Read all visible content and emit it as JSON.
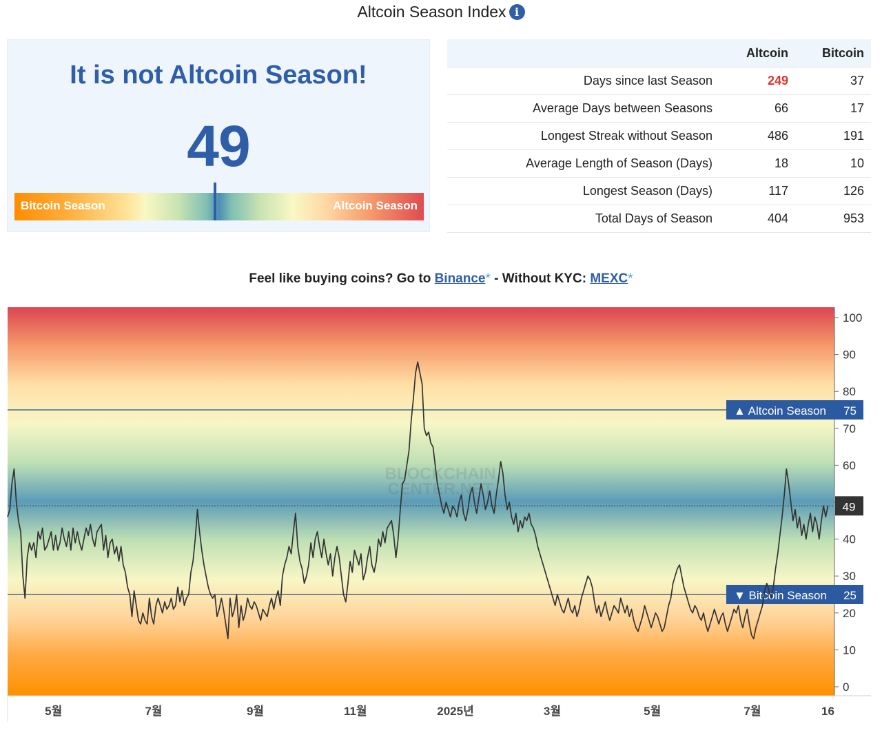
{
  "header": {
    "title": "Altcoin Season Index",
    "info_icon": "info-icon",
    "info_glyph": "i"
  },
  "season_panel": {
    "headline": "It is not Altcoin Season!",
    "value": "49",
    "gauge": {
      "left_label": "Bitcoin Season",
      "right_label": "Altcoin Season",
      "marker_value": 49
    }
  },
  "stats_table": {
    "columns": [
      "",
      "Altcoin",
      "Bitcoin"
    ],
    "rows": [
      {
        "label": "Days since last Season",
        "altcoin": "249",
        "bitcoin": "37"
      },
      {
        "label": "Average Days between Seasons",
        "altcoin": "66",
        "bitcoin": "17"
      },
      {
        "label": "Longest Streak without Season",
        "altcoin": "486",
        "bitcoin": "191"
      },
      {
        "label": "Average Length of Season (Days)",
        "altcoin": "18",
        "bitcoin": "10"
      },
      {
        "label": "Longest Season (Days)",
        "altcoin": "117",
        "bitcoin": "126"
      },
      {
        "label": "Total Days of Season",
        "altcoin": "404",
        "bitcoin": "953"
      }
    ],
    "highlight_color": "#dd3333"
  },
  "promo": {
    "prefix": "Feel like buying coins? Go to ",
    "link1": "Binance",
    "star1": "*",
    "middle": " - Without KYC: ",
    "link2": "MEXC",
    "star2": "*"
  },
  "chart_data": {
    "type": "line",
    "ylim": [
      0,
      100
    ],
    "y_ticks": [
      0,
      10,
      20,
      30,
      40,
      50,
      60,
      70,
      80,
      90,
      100
    ],
    "y_tick_labels": [
      "0",
      "10",
      "20",
      "30",
      "40",
      "",
      "60",
      "70",
      "80",
      "90",
      "100"
    ],
    "x_ticks": [
      {
        "label": "5월",
        "date": "2024-05-01"
      },
      {
        "label": "7월",
        "date": "2024-07-01"
      },
      {
        "label": "9월",
        "date": "2024-09-01"
      },
      {
        "label": "11월",
        "date": "2024-11-01"
      },
      {
        "label": "2025년",
        "date": "2025-01-01"
      },
      {
        "label": "3월",
        "date": "2025-03-01"
      },
      {
        "label": "5월",
        "date": "2025-05-01"
      },
      {
        "label": "7월",
        "date": "2025-07-01"
      },
      {
        "label": "16",
        "date": "2025-08-16"
      }
    ],
    "xlim": [
      "2024-04-03",
      "2025-08-20"
    ],
    "grid": false,
    "background_gradient": [
      "#dc4550",
      "#f59a6b",
      "#ffe0a6",
      "#f7f6c6",
      "#bfe0b4",
      "#5c9cb8",
      "#bfe0b4",
      "#f7f6c6",
      "#ffd49a",
      "#ffa840",
      "#ff9000"
    ],
    "line_color": "#333333",
    "threshold_lines": [
      {
        "label": "▲ Altcoin Season",
        "value": 75,
        "value_label": "75"
      },
      {
        "label": "▼ Bitcoin Season",
        "value": 25,
        "value_label": "25"
      }
    ],
    "current_value": {
      "value": 49,
      "label": "49"
    },
    "watermark": [
      "BLOCKCHAIN",
      "CENTER.NET"
    ],
    "series": [
      {
        "x_start": "2024-04-03",
        "x_end": "2025-08-16",
        "values": [
          46,
          48,
          55,
          59,
          50,
          45,
          42,
          30,
          24,
          35,
          39,
          37,
          39,
          35,
          42,
          40,
          43,
          37,
          38,
          40,
          42,
          37,
          41,
          37,
          39,
          43,
          40,
          38,
          42,
          37,
          43,
          39,
          42,
          39,
          37,
          40,
          43,
          41,
          44,
          40,
          38,
          42,
          43,
          44,
          37,
          41,
          35,
          39,
          40,
          36,
          38,
          34,
          38,
          33,
          31,
          27,
          25,
          19,
          26,
          22,
          18,
          17,
          20,
          18,
          17,
          24,
          19,
          17,
          22,
          24,
          22,
          20,
          23,
          21,
          22,
          24,
          21,
          22,
          27,
          23,
          26,
          22,
          24,
          25,
          31,
          34,
          40,
          48,
          42,
          37,
          33,
          30,
          27,
          25,
          24,
          25,
          19,
          21,
          24,
          21,
          17,
          13,
          24,
          19,
          21,
          25,
          16,
          22,
          18,
          20,
          24,
          22,
          21,
          23,
          22,
          20,
          18,
          21,
          20,
          19,
          22,
          24,
          21,
          24,
          26,
          22,
          30,
          33,
          35,
          38,
          36,
          42,
          47,
          38,
          34,
          32,
          28,
          30,
          33,
          39,
          35,
          40,
          42,
          38,
          35,
          40,
          36,
          33,
          36,
          30,
          35,
          38,
          35,
          30,
          25,
          23,
          28,
          34,
          31,
          37,
          35,
          33,
          36,
          29,
          31,
          35,
          38,
          33,
          31,
          34,
          40,
          38,
          42,
          39,
          43,
          44,
          45,
          41,
          35,
          40,
          48,
          55,
          56,
          60,
          64,
          72,
          78,
          85,
          88,
          85,
          82,
          70,
          68,
          69,
          66,
          65,
          60,
          55,
          52,
          49,
          47,
          50,
          48,
          46,
          49,
          48,
          46,
          50,
          52,
          47,
          45,
          48,
          52,
          54,
          50,
          47,
          51,
          55,
          52,
          48,
          50,
          53,
          49,
          47,
          52,
          56,
          61,
          58,
          52,
          48,
          50,
          46,
          44,
          47,
          42,
          45,
          43,
          46,
          45,
          47,
          44,
          43,
          41,
          38,
          36,
          34,
          32,
          30,
          28,
          26,
          24,
          22,
          25,
          23,
          21,
          20,
          22,
          24,
          21,
          20,
          22,
          19,
          21,
          24,
          26,
          28,
          30,
          29,
          27,
          23,
          20,
          22,
          19,
          21,
          23,
          20,
          18,
          20,
          22,
          21,
          20,
          24,
          22,
          20,
          22,
          19,
          21,
          18,
          16,
          15,
          17,
          19,
          22,
          20,
          18,
          16,
          18,
          20,
          19,
          17,
          15,
          16,
          19,
          22,
          24,
          28,
          30,
          32,
          33,
          30,
          27,
          25,
          23,
          21,
          20,
          22,
          21,
          19,
          18,
          20,
          17,
          15,
          17,
          19,
          21,
          19,
          17,
          19,
          20,
          17,
          15,
          17,
          19,
          21,
          20,
          22,
          18,
          16,
          19,
          21,
          17,
          14,
          13,
          16,
          18,
          20,
          22,
          26,
          28,
          26,
          24,
          27,
          32,
          36,
          41,
          46,
          52,
          59,
          55,
          50,
          45,
          48,
          43,
          46,
          41,
          44,
          40,
          44,
          47,
          42,
          46,
          44,
          40,
          45,
          49,
          46,
          49
        ]
      }
    ]
  }
}
